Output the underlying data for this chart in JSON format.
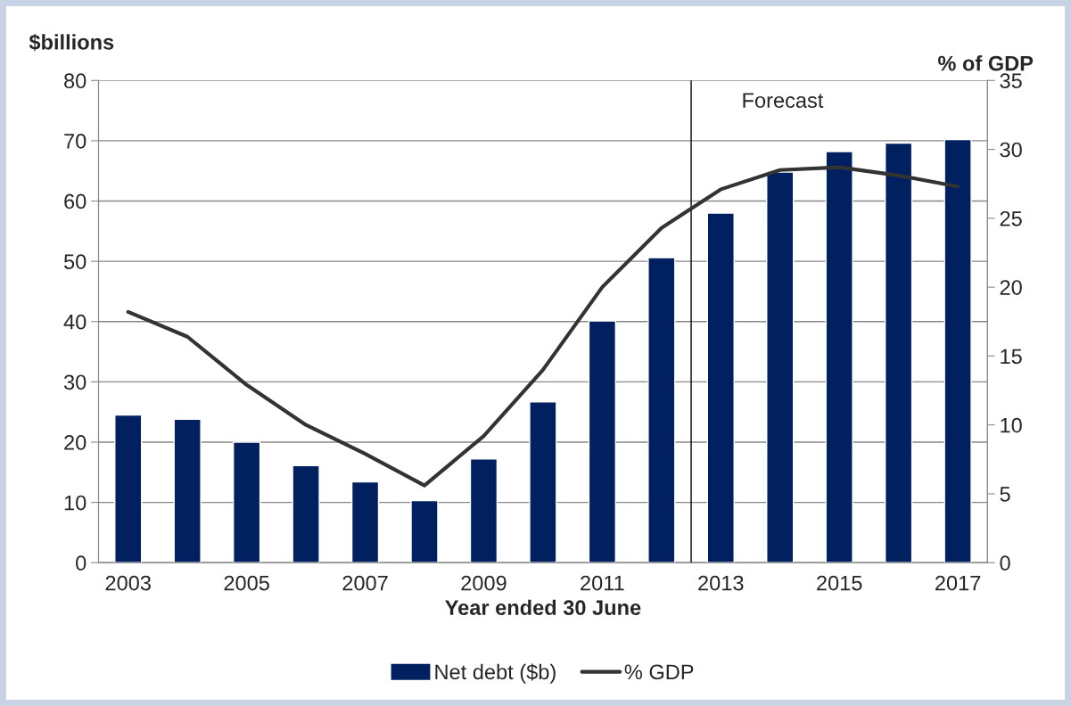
{
  "chart_data": {
    "type": "bar",
    "xlabel": "Year ended 30 June",
    "ylabel": "$billions",
    "y2label": "% of GDP",
    "categories": [
      "2003",
      null,
      "2005",
      null,
      "2007",
      null,
      "2009",
      null,
      "2011",
      null,
      "2013",
      null,
      "2015",
      null,
      "2017"
    ],
    "ylim": [
      0,
      80
    ],
    "yticks": [
      0,
      10,
      20,
      30,
      40,
      50,
      60,
      70,
      80
    ],
    "y2lim": [
      0,
      35
    ],
    "y2ticks": [
      0,
      5,
      10,
      15,
      20,
      25,
      30,
      35
    ],
    "series": [
      {
        "name": "Net debt ($b)",
        "color": "#002060",
        "values": [
          24.5,
          23.8,
          20.0,
          16.1,
          13.4,
          10.3,
          17.2,
          26.7,
          40.1,
          50.6,
          58.0,
          64.8,
          68.2,
          69.6,
          70.2
        ]
      },
      {
        "name": "% GDP",
        "type": "line",
        "axis": "y2",
        "color": "#333333",
        "values": [
          18.2,
          16.4,
          12.9,
          10.0,
          7.9,
          5.6,
          9.2,
          14.0,
          20.0,
          24.3,
          27.1,
          28.5,
          28.7,
          28.1,
          27.3
        ]
      }
    ],
    "ref_lines": [
      {
        "axis": "x",
        "value": "2013",
        "label": "Forecast",
        "color": "#000000"
      }
    ],
    "grid": "y",
    "legend": "bottom"
  }
}
